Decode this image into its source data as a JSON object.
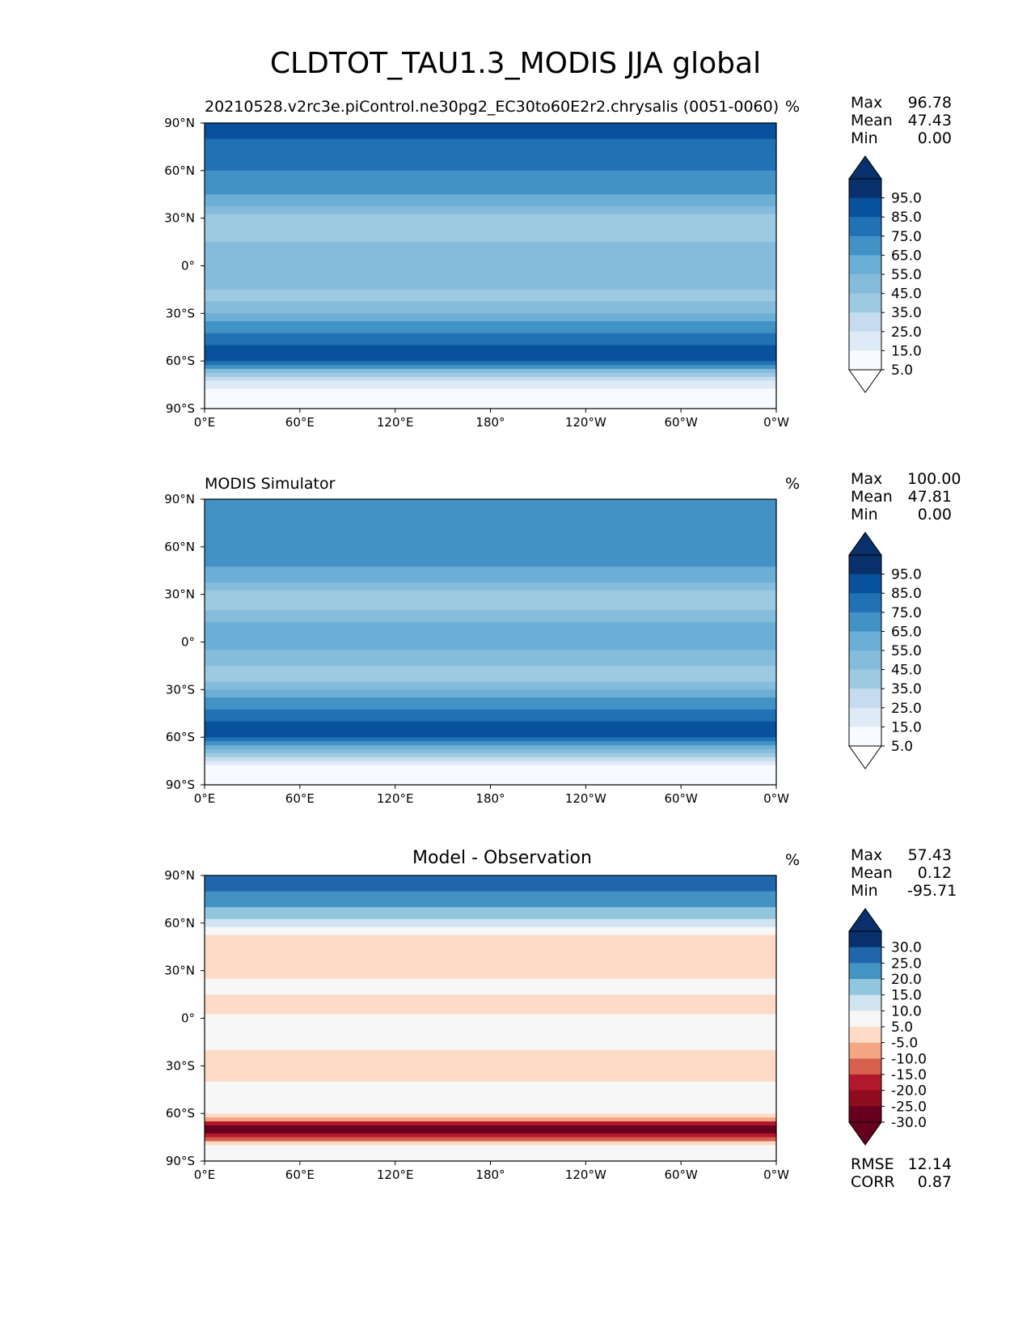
{
  "figure": {
    "title": "CLDTOT_TAU1.3_MODIS JJA global"
  },
  "chart_data": [
    {
      "type": "heatmap",
      "panel_title": "20210528.v2rc3e.piControl.ne30pg2_EC30to60E2r2.chrysalis (0051-0060)",
      "units": "%",
      "x_ticks": [
        "0°E",
        "60°E",
        "120°E",
        "180°",
        "120°W",
        "60°W",
        "0°W"
      ],
      "y_ticks": [
        "90°N",
        "60°N",
        "30°N",
        "0°",
        "30°S",
        "60°S",
        "90°S"
      ],
      "xlim": [
        0,
        360
      ],
      "ylim": [
        -90,
        90
      ],
      "stats": [
        {
          "label": "Max",
          "value": "96.78"
        },
        {
          "label": "Mean",
          "value": "47.43"
        },
        {
          "label": "Min",
          "value": "0.00"
        }
      ],
      "colorbar": {
        "extend": "both",
        "labels": [
          "95.0",
          "85.0",
          "75.0",
          "65.0",
          "55.0",
          "45.0",
          "35.0",
          "25.0",
          "15.0",
          "5.0"
        ],
        "colors": [
          "#08306b",
          "#08519c",
          "#2171b5",
          "#4292c6",
          "#6baed6",
          "#85bcdb",
          "#9ecae1",
          "#c6dbef",
          "#deebf7",
          "#f7fbff"
        ],
        "extend_high": "#08306b",
        "extend_low": "#ffffff"
      },
      "zonal_profile_lat": [
        -90,
        -80,
        -70,
        -60,
        -50,
        -40,
        -30,
        -20,
        -10,
        0,
        10,
        20,
        30,
        40,
        50,
        60,
        70,
        80,
        90
      ],
      "zonal_profile_val": [
        2,
        3,
        30,
        82,
        80,
        68,
        50,
        35,
        45,
        50,
        48,
        32,
        35,
        55,
        68,
        70,
        72,
        80,
        88
      ]
    },
    {
      "type": "heatmap",
      "panel_title": "MODIS Simulator",
      "units": "%",
      "x_ticks": [
        "0°E",
        "60°E",
        "120°E",
        "180°",
        "120°W",
        "60°W",
        "0°W"
      ],
      "y_ticks": [
        "90°N",
        "60°N",
        "30°N",
        "0°",
        "30°S",
        "60°S",
        "90°S"
      ],
      "xlim": [
        0,
        360
      ],
      "ylim": [
        -90,
        90
      ],
      "stats": [
        {
          "label": "Max",
          "value": "100.00"
        },
        {
          "label": "Mean",
          "value": "47.81"
        },
        {
          "label": "Min",
          "value": "0.00"
        }
      ],
      "colorbar": {
        "extend": "both",
        "labels": [
          "95.0",
          "85.0",
          "75.0",
          "65.0",
          "55.0",
          "45.0",
          "35.0",
          "25.0",
          "15.0",
          "5.0"
        ],
        "colors": [
          "#08306b",
          "#08519c",
          "#2171b5",
          "#4292c6",
          "#6baed6",
          "#85bcdb",
          "#9ecae1",
          "#c6dbef",
          "#deebf7",
          "#f7fbff"
        ],
        "extend_high": "#08306b",
        "extend_low": "#ffffff"
      },
      "zonal_profile_lat": [
        -90,
        -80,
        -70,
        -60,
        -50,
        -40,
        -30,
        -20,
        -10,
        0,
        10,
        20,
        30,
        40,
        50,
        60,
        70,
        80,
        90
      ],
      "zonal_profile_val": [
        0,
        0,
        40,
        85,
        80,
        68,
        48,
        35,
        48,
        52,
        55,
        40,
        38,
        52,
        62,
        62,
        62,
        62,
        62
      ]
    },
    {
      "type": "heatmap",
      "panel_title": "Model - Observation",
      "units": "%",
      "x_ticks": [
        "0°E",
        "60°E",
        "120°E",
        "180°",
        "120°W",
        "60°W",
        "0°W"
      ],
      "y_ticks": [
        "90°N",
        "60°N",
        "30°N",
        "0°",
        "30°S",
        "60°S",
        "90°S"
      ],
      "xlim": [
        0,
        360
      ],
      "ylim": [
        -90,
        90
      ],
      "stats": [
        {
          "label": "Max",
          "value": "57.43"
        },
        {
          "label": "Mean",
          "value": "0.12"
        },
        {
          "label": "Min",
          "value": "-95.71"
        }
      ],
      "extra_stats": [
        {
          "label": "RMSE",
          "value": "12.14"
        },
        {
          "label": "CORR",
          "value": "0.87"
        }
      ],
      "colorbar": {
        "extend": "both",
        "labels": [
          "30.0",
          "25.0",
          "20.0",
          "15.0",
          "10.0",
          "5.0",
          "-5.0",
          "-10.0",
          "-15.0",
          "-20.0",
          "-25.0",
          "-30.0"
        ],
        "colors": [
          "#08306b",
          "#2166ac",
          "#4393c3",
          "#92c5de",
          "#d1e5f0",
          "#f7f7f7",
          "#fddbc7",
          "#f4a582",
          "#d6604d",
          "#b2182b",
          "#8f0c1f",
          "#67001f"
        ],
        "extend_high": "#08306b",
        "extend_low": "#67001f"
      },
      "zonal_profile_lat": [
        -90,
        -80,
        -70,
        -60,
        -50,
        -40,
        -30,
        -20,
        -10,
        0,
        10,
        20,
        30,
        40,
        50,
        60,
        70,
        80,
        90
      ],
      "zonal_profile_val": [
        0,
        0,
        -35,
        2,
        0,
        0,
        -2,
        0,
        3,
        2,
        -6,
        4,
        -4,
        -3,
        -2,
        10,
        18,
        22,
        26
      ]
    }
  ]
}
